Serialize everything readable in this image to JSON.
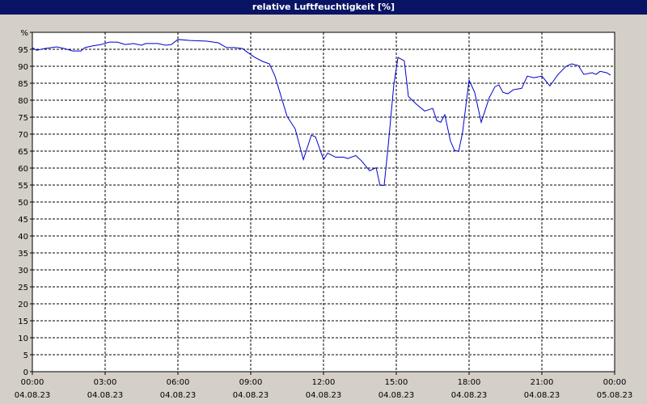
{
  "chart_data": {
    "type": "line",
    "title": "relative Luftfeuchtigkeit [%]",
    "xlim": [
      0,
      24
    ],
    "xticks": [
      {
        "value": 0,
        "label": "00:00"
      },
      {
        "value": 3,
        "label": "03:00"
      },
      {
        "value": 6,
        "label": "06:00"
      },
      {
        "value": 9,
        "label": "09:00"
      },
      {
        "value": 12,
        "label": "12:00"
      },
      {
        "value": 15,
        "label": "15:00"
      },
      {
        "value": 18,
        "label": "18:00"
      },
      {
        "value": 21,
        "label": "21:00"
      },
      {
        "value": 24,
        "label": "00:00"
      }
    ],
    "xtick_dates": [
      "04.08.23",
      "04.08.23",
      "04.08.23",
      "04.08.23",
      "04.08.23",
      "04.08.23",
      "04.08.23",
      "04.08.23",
      "05.08.23"
    ],
    "ylim": [
      0,
      100
    ],
    "yticks": [
      0,
      5,
      10,
      15,
      20,
      25,
      30,
      35,
      40,
      45,
      50,
      55,
      60,
      65,
      70,
      75,
      80,
      85,
      90,
      95,
      {
        "value": 100,
        "label": "%"
      }
    ],
    "grid": true,
    "series": [
      {
        "color": "#0000cc",
        "x": [
          0,
          0.17,
          0.5,
          1,
          1.33,
          1.67,
          2,
          2.17,
          2.5,
          2.83,
          3.17,
          3.5,
          3.83,
          4.17,
          4.5,
          4.67,
          5.17,
          5.5,
          5.73,
          6,
          6.5,
          7.17,
          7.67,
          8,
          8.33,
          8.67,
          8.83,
          9.17,
          9.5,
          9.77,
          10,
          10.5,
          10.83,
          11.17,
          11.5,
          11.67,
          12,
          12.17,
          12.5,
          12.83,
          13,
          13.33,
          13.57,
          13.9,
          14.17,
          14.33,
          14.5,
          14.67,
          14.9,
          15.07,
          15.33,
          15.5,
          15.83,
          16.17,
          16.5,
          16.67,
          16.83,
          17,
          17.23,
          17.4,
          17.57,
          17.73,
          18,
          18.23,
          18.5,
          18.83,
          19.07,
          19.23,
          19.4,
          19.6,
          19.83,
          20.17,
          20.4,
          20.67,
          21,
          21.33,
          21.67,
          22,
          22.23,
          22.5,
          22.73,
          23.07,
          23.23,
          23.4,
          23.67,
          23.83
        ],
        "values": [
          95.5,
          94.7,
          95.2,
          95.7,
          95.2,
          94.5,
          94.5,
          95.5,
          96,
          96.4,
          97.1,
          97.1,
          96.4,
          96.7,
          96.2,
          96.7,
          96.7,
          96.2,
          96.4,
          97.9,
          97.6,
          97.4,
          96.9,
          95.5,
          95.5,
          95.2,
          94.3,
          92.6,
          91.4,
          90.7,
          87.1,
          75.2,
          71.6,
          62.5,
          69.7,
          69.2,
          62.5,
          64.4,
          63.2,
          63.2,
          62.8,
          63.7,
          62.1,
          59.2,
          60.1,
          54.9,
          54.9,
          66.8,
          84.7,
          92.6,
          91.6,
          81.1,
          78.8,
          76.8,
          77.6,
          74,
          73.5,
          75.7,
          68,
          65.2,
          64.9,
          70.4,
          85.9,
          82.3,
          73.5,
          80.7,
          84,
          84.5,
          82.3,
          81.9,
          83.1,
          83.5,
          87.1,
          86.6,
          87.1,
          84.2,
          87.6,
          90,
          90.7,
          90.2,
          87.6,
          88.1,
          87.6,
          88.5,
          88.1,
          87.4
        ]
      }
    ]
  }
}
